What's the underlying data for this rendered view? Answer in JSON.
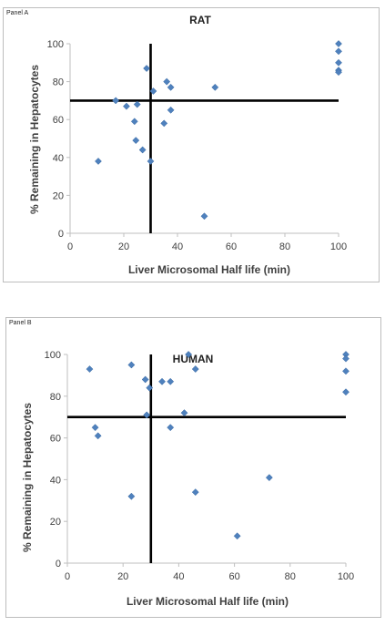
{
  "chart_data": [
    {
      "panel_label": "Panel A",
      "type": "scatter",
      "title": "RAT",
      "xlabel": "Liver Microsomal Half life (min)",
      "ylabel": "% Remaining in Hepatocytes",
      "xlim": [
        0,
        100
      ],
      "ylim": [
        0,
        100
      ],
      "xticks": [
        "0",
        "20",
        "40",
        "60",
        "80",
        "100"
      ],
      "yticks": [
        "0",
        "20",
        "40",
        "60",
        "80",
        "100"
      ],
      "grid": false,
      "marker_color": "#4f81bd",
      "reference_lines": {
        "x": 30,
        "y": 70
      },
      "points": [
        {
          "x": 10.5,
          "y": 38
        },
        {
          "x": 17,
          "y": 70
        },
        {
          "x": 21,
          "y": 67
        },
        {
          "x": 24,
          "y": 59
        },
        {
          "x": 24.5,
          "y": 49
        },
        {
          "x": 25,
          "y": 68
        },
        {
          "x": 27,
          "y": 44
        },
        {
          "x": 28.5,
          "y": 87
        },
        {
          "x": 30,
          "y": 38
        },
        {
          "x": 31,
          "y": 75
        },
        {
          "x": 35,
          "y": 58
        },
        {
          "x": 36,
          "y": 80
        },
        {
          "x": 37.5,
          "y": 77
        },
        {
          "x": 37.5,
          "y": 65
        },
        {
          "x": 50,
          "y": 9
        },
        {
          "x": 54,
          "y": 77
        },
        {
          "x": 100,
          "y": 100
        },
        {
          "x": 100,
          "y": 96
        },
        {
          "x": 100,
          "y": 90
        },
        {
          "x": 100,
          "y": 86
        },
        {
          "x": 100,
          "y": 85
        }
      ]
    },
    {
      "panel_label": "Panel B",
      "type": "scatter",
      "title": "HUMAN",
      "xlabel": "Liver Microsomal Half life (min)",
      "ylabel": "% Remaining in Hepatocytes",
      "xlim": [
        0,
        100
      ],
      "ylim": [
        0,
        100
      ],
      "xticks": [
        "0",
        "20",
        "40",
        "60",
        "80",
        "100"
      ],
      "yticks": [
        "0",
        "20",
        "40",
        "60",
        "80",
        "100"
      ],
      "grid": false,
      "marker_color": "#4f81bd",
      "reference_lines": {
        "x": 30,
        "y": 70
      },
      "points": [
        {
          "x": 8,
          "y": 93
        },
        {
          "x": 10,
          "y": 65
        },
        {
          "x": 11,
          "y": 61
        },
        {
          "x": 23,
          "y": 95
        },
        {
          "x": 23,
          "y": 32
        },
        {
          "x": 28,
          "y": 88
        },
        {
          "x": 28.5,
          "y": 71
        },
        {
          "x": 29.5,
          "y": 84
        },
        {
          "x": 34,
          "y": 87
        },
        {
          "x": 37,
          "y": 87
        },
        {
          "x": 37,
          "y": 65
        },
        {
          "x": 42,
          "y": 72
        },
        {
          "x": 43.5,
          "y": 100
        },
        {
          "x": 46,
          "y": 93
        },
        {
          "x": 46,
          "y": 34
        },
        {
          "x": 61,
          "y": 13
        },
        {
          "x": 72.5,
          "y": 41
        },
        {
          "x": 100,
          "y": 100
        },
        {
          "x": 100,
          "y": 98
        },
        {
          "x": 100,
          "y": 92
        },
        {
          "x": 100,
          "y": 82
        }
      ]
    }
  ]
}
